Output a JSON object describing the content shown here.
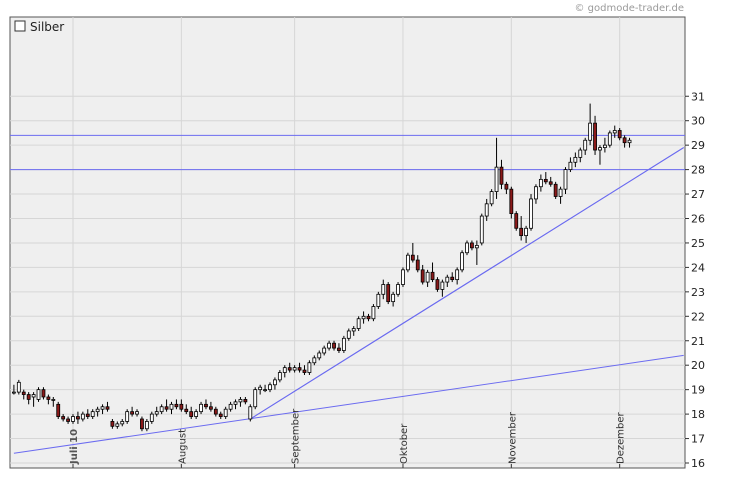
{
  "watermark": "© godmode-trader.de",
  "chart_data": {
    "type": "candlestick",
    "legend": [
      {
        "label": "Silber",
        "marker": "empty-square"
      }
    ],
    "y_axis": {
      "min": 16,
      "max": 31.5,
      "ticks": [
        16,
        17,
        18,
        19,
        20,
        21,
        22,
        23,
        24,
        25,
        26,
        27,
        28,
        29,
        30,
        31
      ],
      "position": "right"
    },
    "x_axis": {
      "ticks": [
        {
          "label": "Juli 10",
          "day": 0,
          "bold": true
        },
        {
          "label": "August",
          "day": 22
        },
        {
          "label": "September",
          "day": 45
        },
        {
          "label": "Oktober",
          "day": 67
        },
        {
          "label": "November",
          "day": 89
        },
        {
          "label": "Dezember",
          "day": 111
        }
      ],
      "vertical_gridlines": true
    },
    "grid": true,
    "colors": {
      "up": "#ffffff",
      "down": "#8b1a1a",
      "wick": "#000000",
      "lines": "#6b6bf0",
      "grid": "#d6d6d6",
      "plot_bg": "#efefef"
    },
    "horizontal_lines": [
      29.4,
      28.0
    ],
    "trend_lines": [
      {
        "from": [
          -12,
          16.4
        ],
        "to": [
          124,
          20.4
        ]
      },
      {
        "from": [
          36,
          17.8
        ],
        "to": [
          124,
          28.9
        ]
      },
      {
        "from": [
          36,
          17.8
        ],
        "to": [
          124,
          28.9
        ]
      }
    ],
    "candles": [
      [
        -12,
        18.9,
        19.2,
        18.8,
        18.9
      ],
      [
        -11,
        18.9,
        19.4,
        18.8,
        19.3
      ],
      [
        -10,
        18.9,
        19.0,
        18.6,
        18.8
      ],
      [
        -9,
        18.8,
        18.9,
        18.4,
        18.6
      ],
      [
        -8,
        18.7,
        18.9,
        18.3,
        18.8
      ],
      [
        -7,
        18.6,
        19.1,
        18.5,
        19.0
      ],
      [
        -6,
        19.0,
        19.1,
        18.6,
        18.7
      ],
      [
        -5,
        18.7,
        18.8,
        18.4,
        18.6
      ],
      [
        -4,
        18.6,
        18.7,
        18.3,
        18.6
      ],
      [
        -3,
        18.4,
        18.5,
        17.8,
        17.9
      ],
      [
        -2,
        17.9,
        18.0,
        17.7,
        17.8
      ],
      [
        -1,
        17.8,
        17.9,
        17.6,
        17.7
      ],
      [
        0,
        17.7,
        18.0,
        17.6,
        17.9
      ],
      [
        1,
        17.9,
        18.1,
        17.6,
        17.8
      ],
      [
        2,
        17.8,
        18.1,
        17.7,
        18.0
      ],
      [
        3,
        18.0,
        18.2,
        17.8,
        17.9
      ],
      [
        4,
        17.9,
        18.2,
        17.8,
        18.1
      ],
      [
        5,
        18.1,
        18.3,
        17.9,
        18.2
      ],
      [
        6,
        18.2,
        18.4,
        18.0,
        18.3
      ],
      [
        7,
        18.3,
        18.5,
        18.1,
        18.2
      ],
      [
        8,
        17.7,
        17.8,
        17.4,
        17.5
      ],
      [
        9,
        17.5,
        17.7,
        17.4,
        17.6
      ],
      [
        10,
        17.6,
        17.8,
        17.5,
        17.7
      ],
      [
        11,
        17.7,
        18.2,
        17.6,
        18.1
      ],
      [
        12,
        18.1,
        18.3,
        17.9,
        18.0
      ],
      [
        13,
        18.0,
        18.2,
        17.9,
        18.1
      ],
      [
        14,
        17.8,
        17.9,
        17.3,
        17.4
      ],
      [
        15,
        17.4,
        17.8,
        17.3,
        17.7
      ],
      [
        16,
        17.7,
        18.1,
        17.6,
        18.0
      ],
      [
        17,
        18.0,
        18.3,
        17.9,
        18.1
      ],
      [
        18,
        18.1,
        18.4,
        18.0,
        18.3
      ],
      [
        19,
        18.3,
        18.6,
        18.1,
        18.2
      ],
      [
        20,
        18.2,
        18.5,
        18.0,
        18.4
      ],
      [
        21,
        18.4,
        18.6,
        18.2,
        18.3
      ],
      [
        22,
        18.4,
        18.6,
        18.1,
        18.2
      ],
      [
        23,
        18.2,
        18.4,
        18.0,
        18.1
      ],
      [
        24,
        18.1,
        18.3,
        17.8,
        17.9
      ],
      [
        25,
        17.9,
        18.2,
        17.8,
        18.1
      ],
      [
        26,
        18.1,
        18.5,
        18.0,
        18.4
      ],
      [
        27,
        18.4,
        18.6,
        18.2,
        18.3
      ],
      [
        28,
        18.3,
        18.5,
        18.1,
        18.2
      ],
      [
        29,
        18.2,
        18.3,
        17.9,
        18.0
      ],
      [
        30,
        18.0,
        18.1,
        17.8,
        17.9
      ],
      [
        31,
        17.9,
        18.3,
        17.8,
        18.2
      ],
      [
        32,
        18.2,
        18.5,
        18.1,
        18.4
      ],
      [
        33,
        18.4,
        18.6,
        18.2,
        18.5
      ],
      [
        34,
        18.5,
        18.7,
        18.3,
        18.6
      ],
      [
        35,
        18.6,
        18.7,
        18.4,
        18.5
      ],
      [
        36,
        17.8,
        18.4,
        17.7,
        18.3
      ],
      [
        37,
        18.3,
        19.1,
        18.2,
        19.0
      ],
      [
        38,
        19.0,
        19.2,
        18.8,
        19.1
      ],
      [
        39,
        19.0,
        19.2,
        18.9,
        19.0
      ],
      [
        40,
        19.0,
        19.3,
        18.9,
        19.2
      ],
      [
        41,
        19.2,
        19.5,
        19.0,
        19.4
      ],
      [
        42,
        19.4,
        19.8,
        19.3,
        19.7
      ],
      [
        43,
        19.7,
        20.0,
        19.5,
        19.9
      ],
      [
        44,
        19.9,
        20.1,
        19.7,
        19.8
      ],
      [
        45,
        19.8,
        20.0,
        19.7,
        19.9
      ],
      [
        46,
        19.9,
        20.1,
        19.7,
        19.8
      ],
      [
        47,
        19.8,
        20.0,
        19.6,
        19.7
      ],
      [
        48,
        19.7,
        20.2,
        19.6,
        20.1
      ],
      [
        49,
        20.1,
        20.4,
        20.0,
        20.3
      ],
      [
        50,
        20.3,
        20.6,
        20.2,
        20.5
      ],
      [
        51,
        20.5,
        20.8,
        20.4,
        20.7
      ],
      [
        52,
        20.7,
        21.0,
        20.6,
        20.9
      ],
      [
        53,
        20.9,
        21.0,
        20.6,
        20.7
      ],
      [
        54,
        20.7,
        20.9,
        20.5,
        20.6
      ],
      [
        55,
        20.6,
        21.2,
        20.5,
        21.1
      ],
      [
        56,
        21.1,
        21.5,
        21.0,
        21.4
      ],
      [
        57,
        21.4,
        21.6,
        21.2,
        21.5
      ],
      [
        58,
        21.5,
        22.0,
        21.4,
        21.9
      ],
      [
        59,
        21.9,
        22.2,
        21.7,
        22.0
      ],
      [
        60,
        22.0,
        22.1,
        21.8,
        21.9
      ],
      [
        61,
        21.9,
        22.5,
        21.8,
        22.4
      ],
      [
        62,
        22.4,
        23.0,
        22.3,
        22.9
      ],
      [
        63,
        22.9,
        23.5,
        22.7,
        23.3
      ],
      [
        64,
        23.3,
        23.4,
        22.5,
        22.6
      ],
      [
        65,
        22.6,
        23.0,
        22.4,
        22.9
      ],
      [
        66,
        22.9,
        23.4,
        22.8,
        23.3
      ],
      [
        67,
        23.3,
        24.0,
        23.2,
        23.9
      ],
      [
        68,
        23.9,
        24.6,
        23.8,
        24.5
      ],
      [
        69,
        24.5,
        25.0,
        24.2,
        24.3
      ],
      [
        70,
        24.3,
        24.5,
        23.8,
        23.9
      ],
      [
        71,
        23.9,
        24.1,
        23.3,
        23.4
      ],
      [
        72,
        23.4,
        23.9,
        23.2,
        23.8
      ],
      [
        73,
        23.8,
        24.2,
        23.4,
        23.5
      ],
      [
        74,
        23.5,
        23.6,
        23.0,
        23.1
      ],
      [
        75,
        23.1,
        23.5,
        22.8,
        23.4
      ],
      [
        76,
        23.4,
        23.7,
        23.2,
        23.6
      ],
      [
        77,
        23.6,
        23.8,
        23.4,
        23.5
      ],
      [
        78,
        23.5,
        24.0,
        23.3,
        23.9
      ],
      [
        79,
        23.9,
        24.7,
        23.8,
        24.6
      ],
      [
        80,
        24.6,
        25.1,
        24.5,
        25.0
      ],
      [
        81,
        25.0,
        25.1,
        24.7,
        24.8
      ],
      [
        82,
        24.8,
        25.1,
        24.1,
        24.9
      ],
      [
        83,
        25.0,
        26.2,
        24.9,
        26.1
      ],
      [
        84,
        26.1,
        26.8,
        25.9,
        26.6
      ],
      [
        85,
        26.6,
        27.2,
        26.5,
        27.1
      ],
      [
        86,
        27.1,
        29.3,
        26.8,
        28.1
      ],
      [
        87,
        28.1,
        28.4,
        27.2,
        27.4
      ],
      [
        88,
        27.4,
        27.5,
        27.0,
        27.2
      ],
      [
        89,
        27.2,
        27.3,
        26.0,
        26.2
      ],
      [
        90,
        26.2,
        26.3,
        25.5,
        25.6
      ],
      [
        91,
        25.6,
        26.1,
        25.1,
        25.3
      ],
      [
        92,
        25.3,
        25.7,
        25.0,
        25.6
      ],
      [
        93,
        25.6,
        27.0,
        25.5,
        26.8
      ],
      [
        94,
        26.8,
        27.4,
        26.6,
        27.3
      ],
      [
        95,
        27.3,
        27.8,
        27.1,
        27.6
      ],
      [
        96,
        27.6,
        27.9,
        27.4,
        27.5
      ],
      [
        97,
        27.5,
        27.7,
        27.3,
        27.4
      ],
      [
        98,
        27.4,
        27.5,
        26.8,
        26.9
      ],
      [
        99,
        26.9,
        27.3,
        26.6,
        27.2
      ],
      [
        100,
        27.2,
        28.1,
        27.0,
        28.0
      ],
      [
        101,
        28.0,
        28.5,
        27.9,
        28.3
      ],
      [
        102,
        28.3,
        28.7,
        28.1,
        28.5
      ],
      [
        103,
        28.5,
        28.9,
        28.3,
        28.8
      ],
      [
        104,
        28.8,
        29.3,
        28.6,
        29.2
      ],
      [
        105,
        29.2,
        30.7,
        29.0,
        29.9
      ],
      [
        106,
        29.9,
        30.2,
        28.6,
        28.8
      ],
      [
        107,
        28.8,
        29.0,
        28.2,
        28.9
      ],
      [
        108,
        28.9,
        29.3,
        28.7,
        29.0
      ],
      [
        109,
        29.0,
        29.6,
        28.9,
        29.5
      ],
      [
        110,
        29.5,
        29.8,
        29.3,
        29.6
      ],
      [
        111,
        29.6,
        29.7,
        29.2,
        29.3
      ],
      [
        112,
        29.3,
        29.4,
        28.9,
        29.1
      ],
      [
        113,
        29.1,
        29.3,
        28.9,
        29.2
      ]
    ]
  }
}
